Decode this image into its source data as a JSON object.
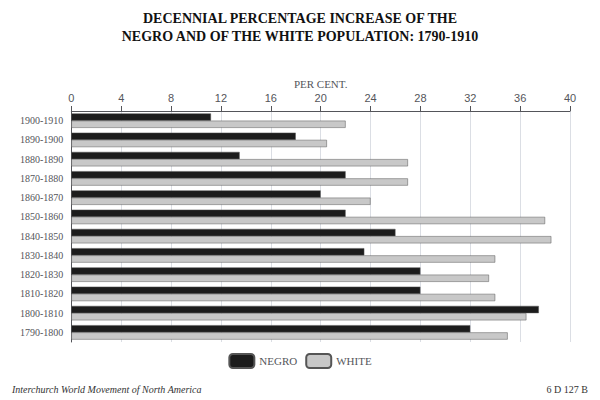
{
  "chart_data": {
    "type": "bar",
    "orientation": "horizontal",
    "title": "DECENNIAL PERCENTAGE INCREASE OF THE",
    "subtitle": "NEGRO AND OF THE WHITE POPULATION: 1790-1910",
    "xlabel": "PER CENT.",
    "categories": [
      "1900-1910",
      "1890-1900",
      "1880-1890",
      "1870-1880",
      "1860-1870",
      "1850-1860",
      "1840-1850",
      "1830-1840",
      "1820-1830",
      "1810-1820",
      "1800-1810",
      "1790-1800"
    ],
    "series": [
      {
        "name": "NEGRO",
        "color": "#1c1c1c",
        "values": [
          11.2,
          18.0,
          13.5,
          22.0,
          20.0,
          22.0,
          26.0,
          23.5,
          28.0,
          28.0,
          37.5,
          32.0
        ]
      },
      {
        "name": "WHITE",
        "color": "#c8c8c8",
        "values": [
          22.0,
          20.5,
          27.0,
          27.0,
          24.0,
          38.0,
          38.5,
          34.0,
          33.5,
          34.0,
          36.5,
          35.0
        ]
      }
    ],
    "xlim": [
      0,
      40
    ],
    "xticks": [
      0,
      4,
      8,
      12,
      16,
      20,
      24,
      28,
      32,
      36,
      40
    ],
    "grid": true,
    "legend": "bottom",
    "annotations": [
      "Interchurch World Movement of North America",
      "6 D 127 B"
    ]
  }
}
